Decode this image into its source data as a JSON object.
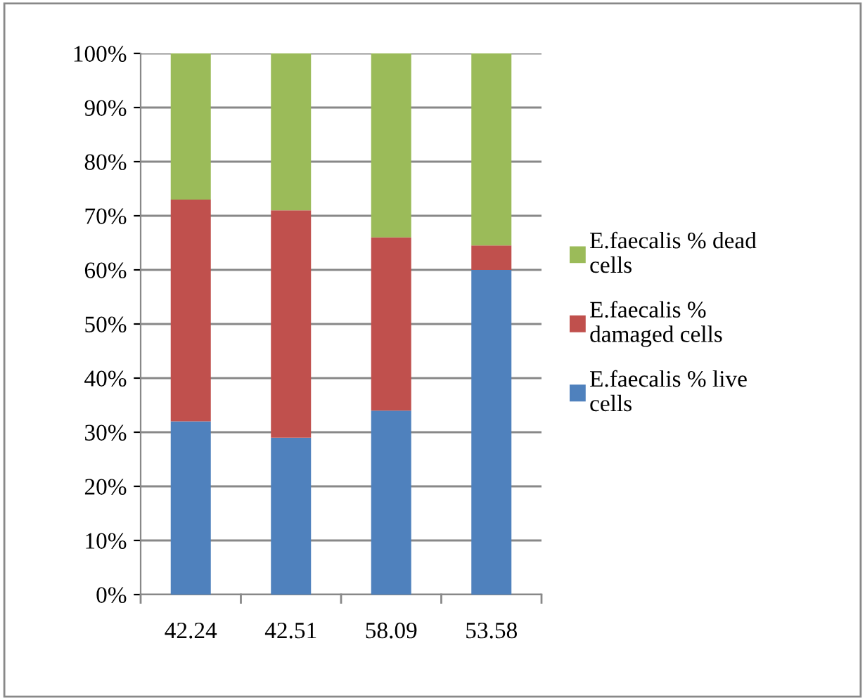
{
  "chart_data": {
    "type": "bar",
    "stacked": true,
    "categories": [
      "42.24",
      "42.51",
      "58.09",
      "53.58"
    ],
    "series": [
      {
        "name": "E.faecalis % live cells",
        "color": "#4f81bd",
        "values": [
          32,
          29,
          34,
          60
        ]
      },
      {
        "name": "E.faecalis % damaged cells",
        "color": "#c0504d",
        "values": [
          41,
          42,
          32,
          4.5
        ]
      },
      {
        "name": "E.faecalis % dead cells",
        "color": "#9bbb59",
        "values": [
          27,
          29,
          34,
          35.5
        ]
      }
    ],
    "ylim": [
      0,
      100
    ],
    "yticks": [
      {
        "value": 0,
        "label": "0%"
      },
      {
        "value": 10,
        "label": "10%"
      },
      {
        "value": 20,
        "label": "20%"
      },
      {
        "value": 30,
        "label": "30%"
      },
      {
        "value": 40,
        "label": "40%"
      },
      {
        "value": 50,
        "label": "50%"
      },
      {
        "value": 60,
        "label": "60%"
      },
      {
        "value": 70,
        "label": "70%"
      },
      {
        "value": 80,
        "label": "80%"
      },
      {
        "value": 90,
        "label": "90%"
      },
      {
        "value": 100,
        "label": "100%"
      }
    ],
    "grid": "y",
    "legend": "right"
  }
}
